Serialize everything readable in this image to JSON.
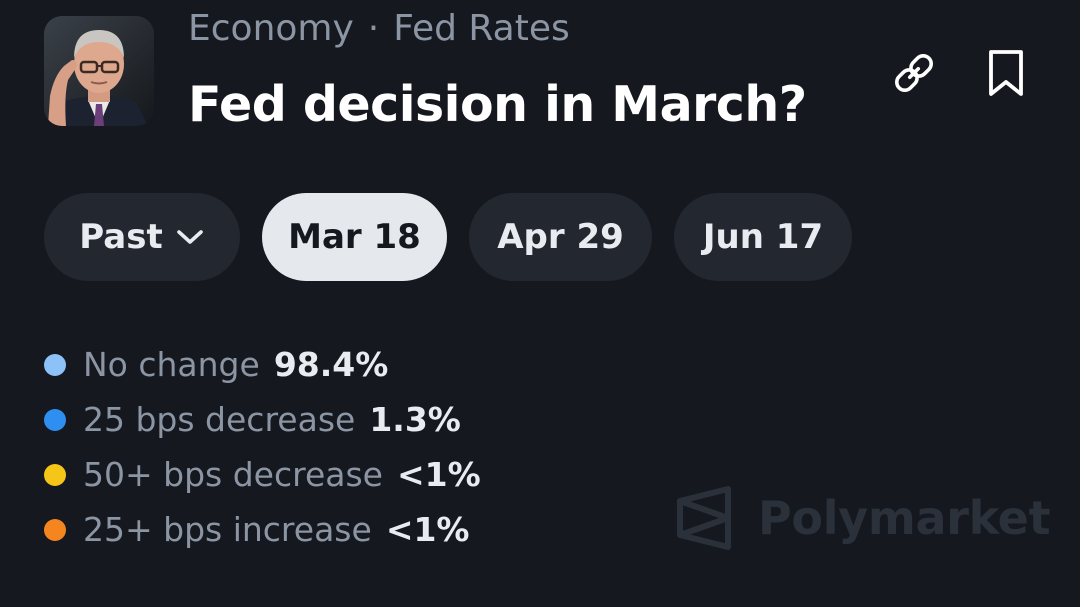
{
  "header": {
    "category": "Economy",
    "separator": "·",
    "subcategory": "Fed Rates",
    "title": "Fed decision in March?",
    "avatar_icon": "market-thumbnail-portrait",
    "link_icon": "link-icon",
    "bookmark_icon": "bookmark-icon"
  },
  "tabs": [
    {
      "label": "Past",
      "icon": "chevron-down-icon",
      "active": false
    },
    {
      "label": "Mar 18",
      "active": true
    },
    {
      "label": "Apr 29",
      "active": false
    },
    {
      "label": "Jun 17",
      "active": false
    }
  ],
  "outcomes": [
    {
      "label": "No change",
      "value": "98.4%",
      "color": "#8cc2f7"
    },
    {
      "label": "25 bps decrease",
      "value": "1.3%",
      "color": "#2f8ff1"
    },
    {
      "label": "50+ bps decrease",
      "value": "<1%",
      "color": "#f5c518"
    },
    {
      "label": "25+ bps increase",
      "value": "<1%",
      "color": "#f5851f"
    }
  ],
  "watermark": {
    "text": "Polymarket",
    "icon": "polymarket-logo-icon"
  },
  "colors": {
    "background": "#15181e",
    "tab_bg": "#232730",
    "tab_active_bg": "#e5e9ee",
    "muted_text": "#8b95a3",
    "watermark": "#2a313b"
  }
}
